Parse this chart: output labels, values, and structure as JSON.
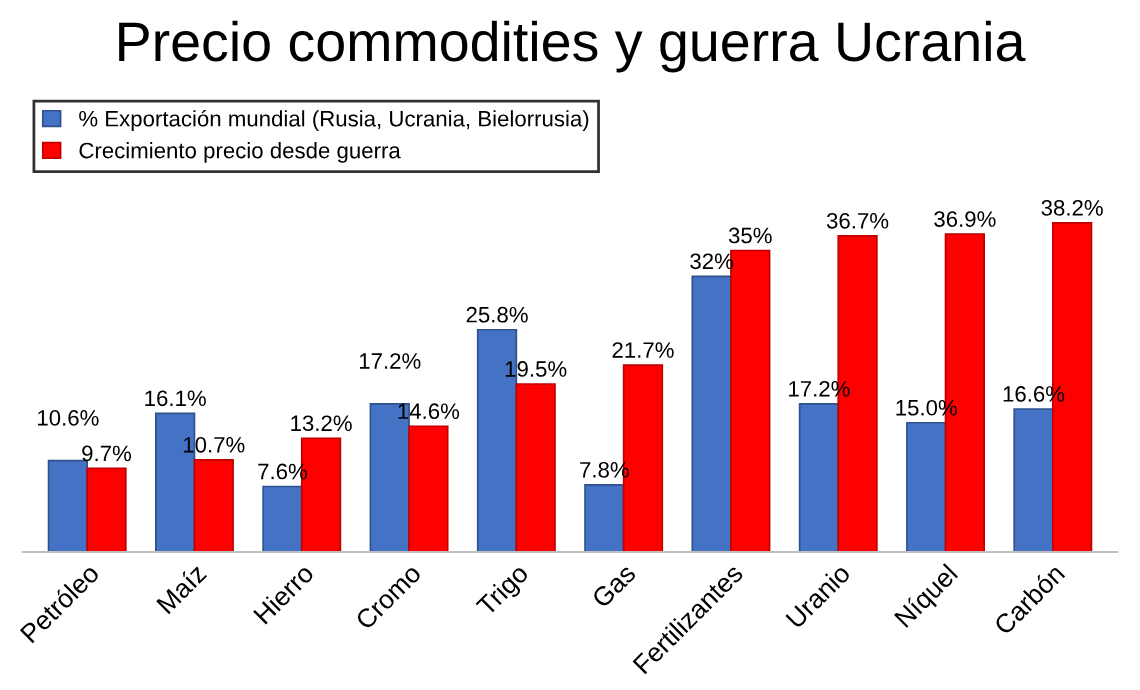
{
  "chart_data": {
    "type": "bar",
    "title": "Precio commodities y guerra Ucrania",
    "categories": [
      "Petróleo",
      "Maíz",
      "Hierro",
      "Cromo",
      "Trigo",
      "Gas",
      "Fertilizantes",
      "Uranio",
      "Níquel",
      "Carbón"
    ],
    "series": [
      {
        "name": "% Exportación mundial (Rusia, Ucrania, Bielorrusia)",
        "color": "#4472c4",
        "values": [
          10.6,
          16.1,
          7.6,
          17.2,
          25.8,
          7.8,
          32,
          17.2,
          15.0,
          16.6
        ],
        "value_labels": [
          "10.6%",
          "16.1%",
          "7.6%",
          "17.2%",
          "25.8%",
          "7.8%",
          "32%",
          "17.2%",
          "15.0%",
          "16.6%"
        ]
      },
      {
        "name": "Crecimiento precio desde guerra",
        "color": "#ff0000",
        "values": [
          9.7,
          10.7,
          13.2,
          14.6,
          19.5,
          21.7,
          35,
          36.7,
          36.9,
          38.2
        ],
        "value_labels": [
          "9.7%",
          "10.7%",
          "13.2%",
          "14.6%",
          "19.5%",
          "21.7%",
          "35%",
          "36.7%",
          "36.9%",
          "38.2%"
        ]
      }
    ],
    "grid": false,
    "legend": "top left"
  }
}
